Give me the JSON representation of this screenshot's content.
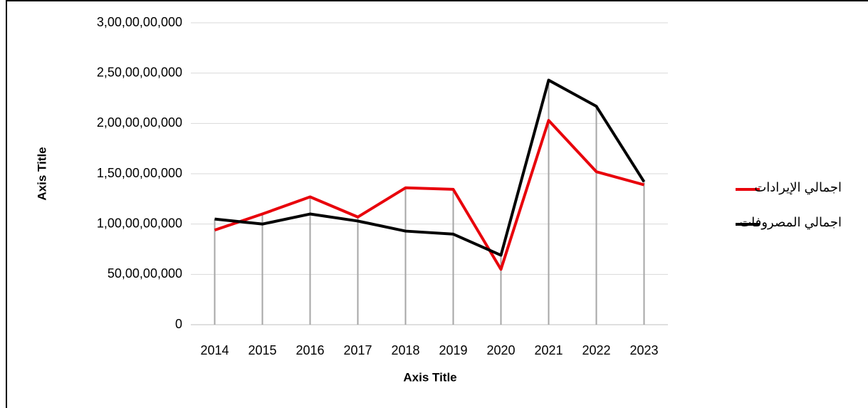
{
  "chart_data": {
    "type": "line",
    "x_label": "Axis Title",
    "y_label": "Axis Title",
    "categories": [
      "2014",
      "2015",
      "2016",
      "2017",
      "2018",
      "2019",
      "2020",
      "2021",
      "2022",
      "2023"
    ],
    "series": [
      {
        "name": "اجمالي الإيرادات",
        "color": "#e8000b",
        "values": [
          940000000,
          1100000000,
          1270000000,
          1070000000,
          1360000000,
          1345000000,
          550000000,
          2030000000,
          1520000000,
          1390000000
        ]
      },
      {
        "name": "اجمالي المصروفات",
        "color": "#000000",
        "values": [
          1050000000,
          1000000000,
          1100000000,
          1030000000,
          930000000,
          900000000,
          690000000,
          2430000000,
          2170000000,
          1420000000
        ]
      }
    ],
    "ylim": [
      0,
      3000000000
    ],
    "yticks": [
      0,
      {
        "value": 500000000,
        "label": "50,00,00,000"
      },
      {
        "value": 1000000000,
        "label": "1,00,00,00,000"
      },
      {
        "value": 1500000000,
        "label": "1,50,00,00,000"
      },
      {
        "value": 2000000000,
        "label": "2,00,00,00,000"
      },
      {
        "value": 2500000000,
        "label": "2,50,00,00,000"
      },
      {
        "value": 3000000000,
        "label": "3,00,00,00,000"
      }
    ],
    "grid": true,
    "drop_lines": true,
    "legend": "right"
  }
}
